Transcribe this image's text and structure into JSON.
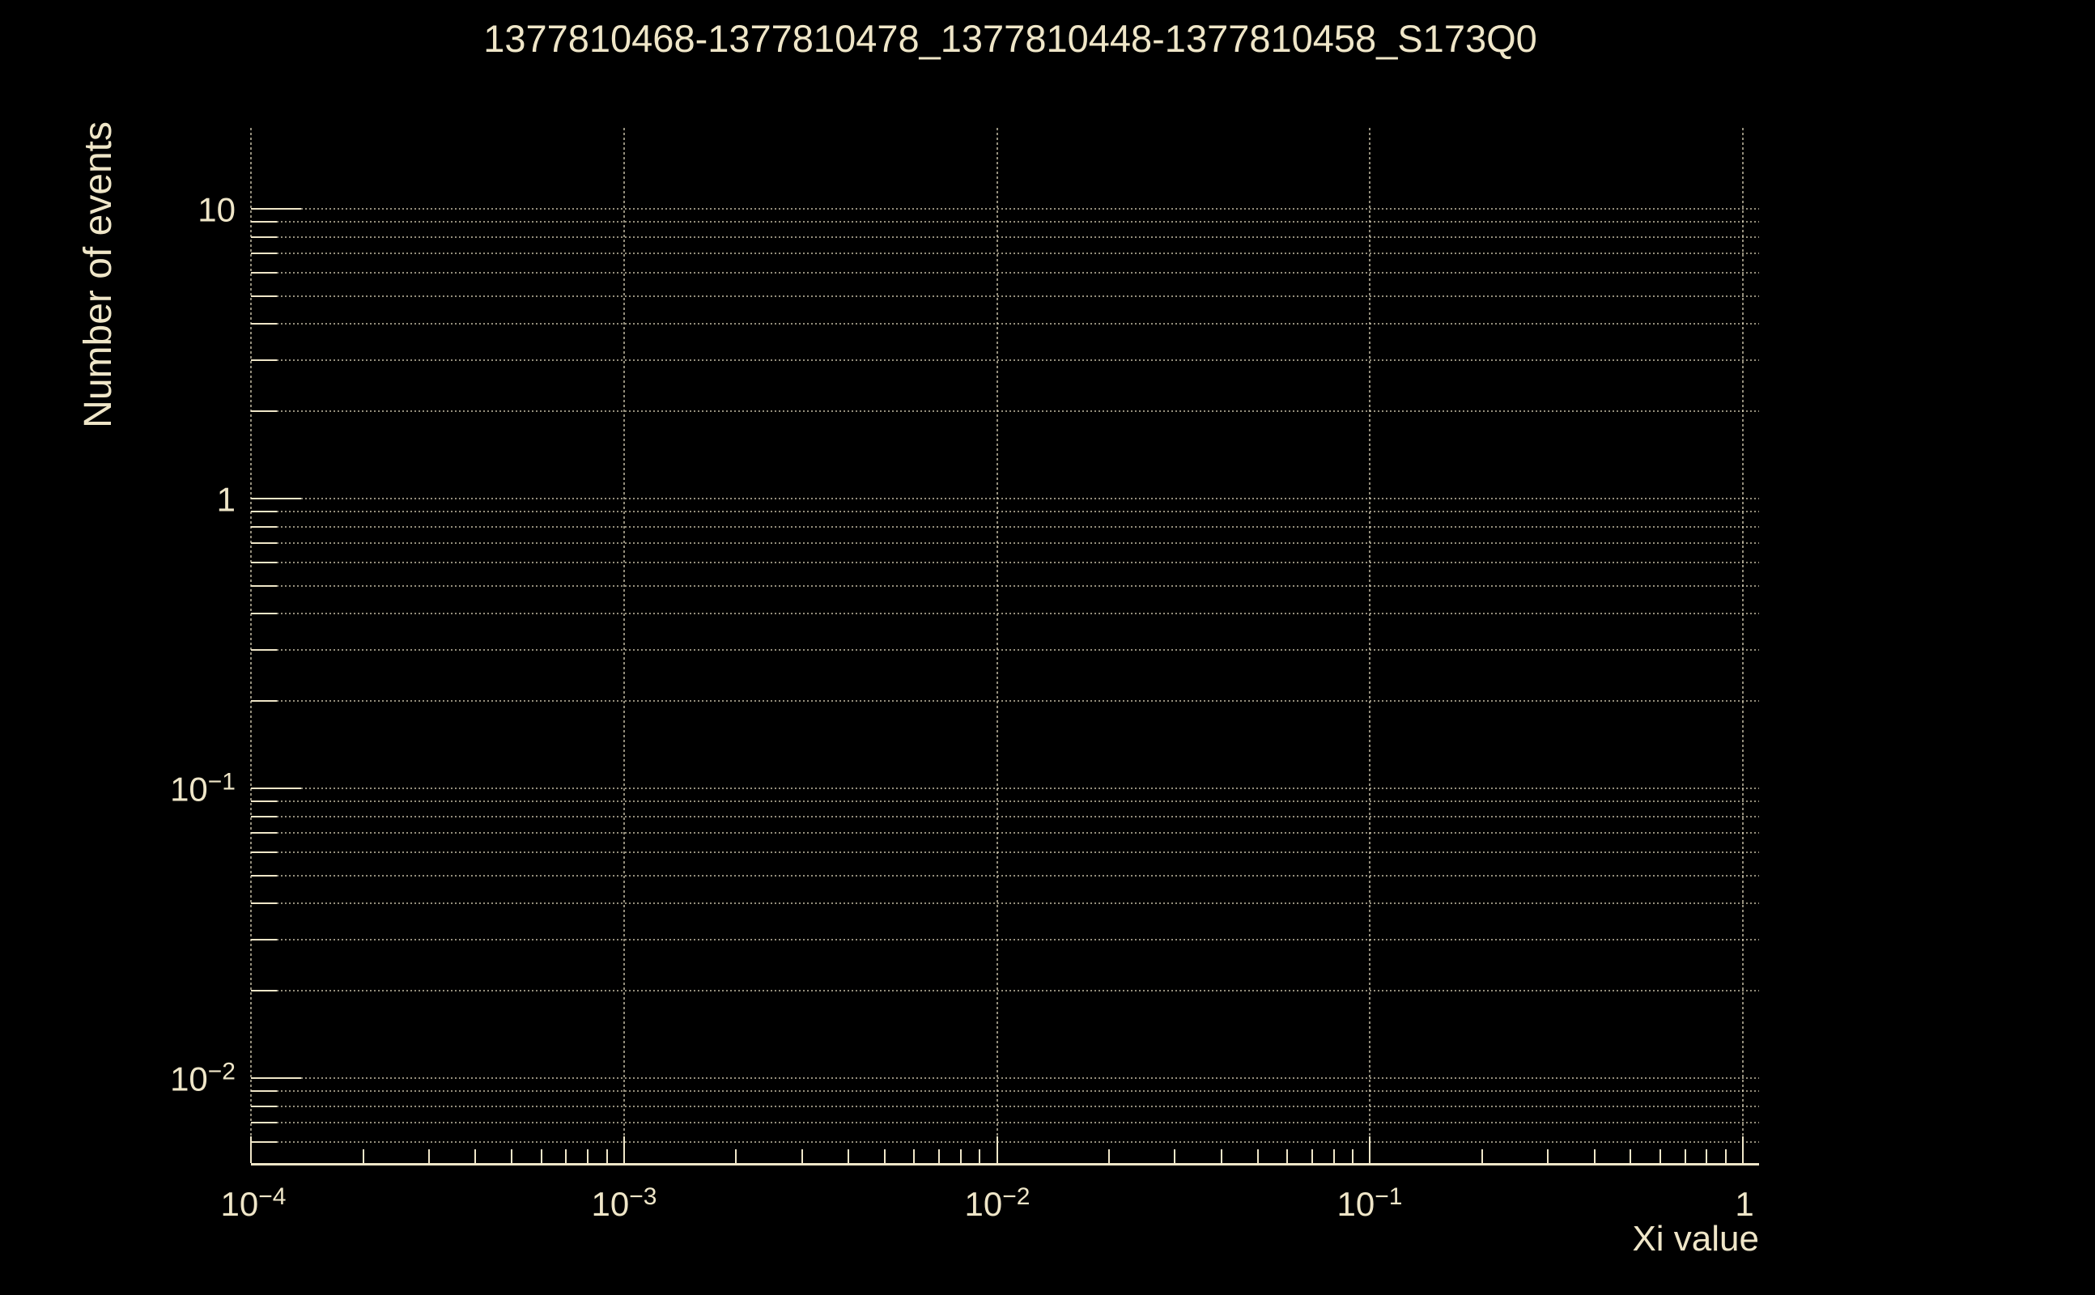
{
  "title": "1377810468-1377810478_1377810448-1377810458_S173Q0",
  "colors": {
    "background": "#000000",
    "foreground": "#efe6c8",
    "grid": "rgba(239,230,200,0.62)"
  },
  "chart_data": {
    "type": "line",
    "title": "1377810468-1377810478_1377810448-1377810458_S173Q0",
    "xlabel": "Xi value",
    "ylabel": "Number of events",
    "x_scale": "log",
    "y_scale": "log",
    "xlim": [
      0.0001,
      1.12
    ],
    "ylim": [
      0.0052,
      19
    ],
    "grid": "dotted gridlines at major and minor log ticks (horizontal), major decades only (vertical)",
    "legend": null,
    "series": [],
    "x_ticks": [
      {
        "value": 0.0001,
        "base": "10",
        "exp": "−4"
      },
      {
        "value": 0.001,
        "base": "10",
        "exp": "−3"
      },
      {
        "value": 0.01,
        "base": "10",
        "exp": "−2"
      },
      {
        "value": 0.1,
        "base": "10",
        "exp": "−1"
      },
      {
        "value": 1,
        "base": "1",
        "exp": ""
      }
    ],
    "y_ticks": [
      {
        "value": 10,
        "base": "10",
        "exp": ""
      },
      {
        "value": 1,
        "base": "1",
        "exp": ""
      },
      {
        "value": 0.1,
        "base": "10",
        "exp": "−1"
      },
      {
        "value": 0.01,
        "base": "10",
        "exp": "−2"
      }
    ]
  }
}
